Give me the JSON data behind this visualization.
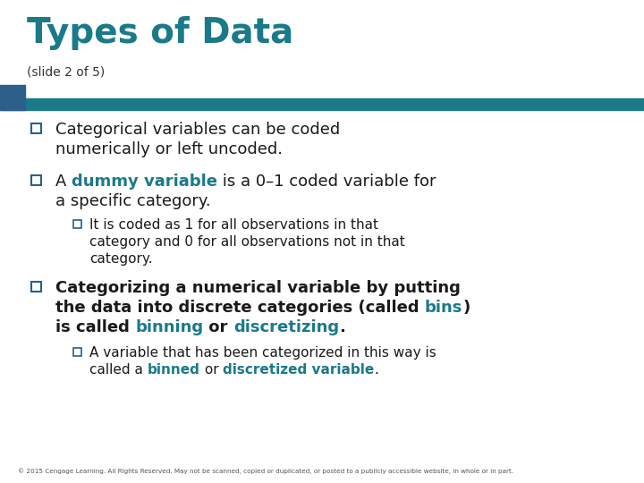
{
  "title": "Types of Data",
  "subtitle": "(slide 2 of 5)",
  "title_color": "#1a7a8a",
  "subtitle_color": "#333333",
  "accent_color": "#1a7a8a",
  "text_color": "#1a1a1a",
  "bg_color": "#ffffff",
  "bar_color": "#1a7a8a",
  "bar_dark_color": "#2c5f8a",
  "footer": "© 2015 Cengage Learning. All Rights Reserved. May not be scanned, copied or duplicated, or posted to a publicly accessible website, in whole or in part.",
  "bullet_color": "#2c5f8a",
  "sub_bullet_color": "#2c5f8a",
  "title_fontsize": 28,
  "subtitle_fontsize": 10,
  "body_fontsize": 13,
  "sub_fontsize": 11
}
